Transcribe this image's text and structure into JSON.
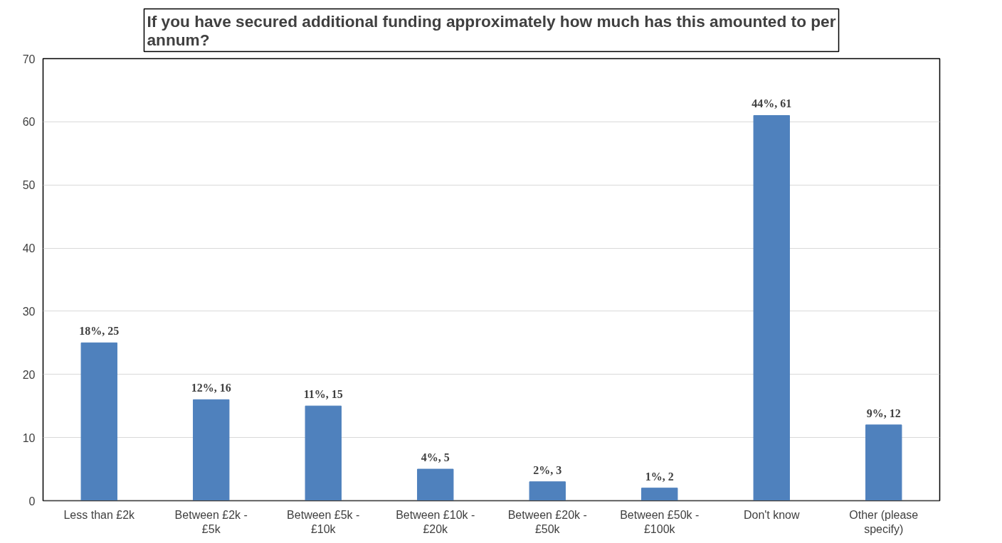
{
  "chart_data": {
    "type": "bar",
    "title": "If you have secured additional funding approximately how much has this amounted to per annum?",
    "categories": [
      "Less than £2k",
      "Between £2k - £5k",
      "Between £5k - £10k",
      "Between £10k - £20k",
      "Between £20k - £50k",
      "Between £50k - £100k",
      "Don't know",
      "Other (please specify)"
    ],
    "values": [
      25,
      16,
      15,
      5,
      3,
      2,
      61,
      12
    ],
    "value_labels": [
      "18%, 25",
      "12%, 16",
      "11%, 15",
      "4%, 5",
      "2%, 3",
      "1%, 2",
      "44%, 61",
      "9%, 12"
    ],
    "color": "#4f81bd",
    "ylim": [
      0,
      70
    ],
    "yticks": [
      0,
      10,
      20,
      30,
      40,
      50,
      60,
      70
    ],
    "grid": "y"
  }
}
